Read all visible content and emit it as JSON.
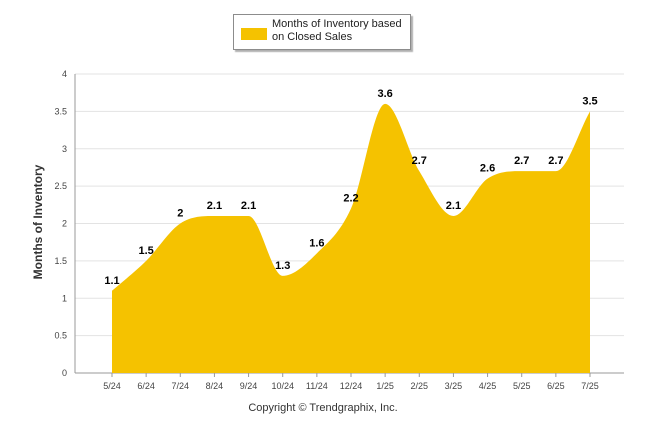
{
  "chart_data": {
    "type": "area",
    "categories": [
      "5/24",
      "6/24",
      "7/24",
      "8/24",
      "9/24",
      "10/24",
      "11/24",
      "12/24",
      "1/25",
      "2/25",
      "3/25",
      "4/25",
      "5/25",
      "6/25",
      "7/25"
    ],
    "series": [
      {
        "name": "Months of Inventory based on Closed Sales",
        "values": [
          1.1,
          1.5,
          2,
          2.1,
          2.1,
          1.3,
          1.6,
          2.2,
          3.6,
          2.7,
          2.1,
          2.6,
          2.7,
          2.7,
          3.5
        ],
        "labels": [
          "1.1",
          "1.5",
          "2",
          "2.1",
          "2.1",
          "1.3",
          "1.6",
          "2.2",
          "3.6",
          "2.7",
          "2.1",
          "2.6",
          "2.7",
          "2.7",
          "3.5"
        ],
        "color": "#f5c200"
      }
    ],
    "ylabel": "Months of Inventory",
    "ylim": [
      0,
      4
    ],
    "yticks": [
      "0",
      "0.5",
      "1",
      "1.5",
      "2",
      "2.5",
      "3",
      "3.5",
      "4"
    ],
    "grid": true,
    "legend_position": "top-center"
  },
  "legend": {
    "label": "Months of Inventory based on Closed Sales"
  },
  "copyright": "Copyright © Trendgraphix, Inc."
}
